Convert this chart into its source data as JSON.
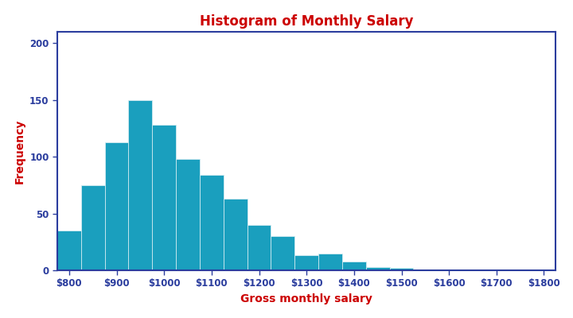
{
  "title": "Histogram of Monthly Salary",
  "xlabel": "Gross monthly salary",
  "ylabel": "Frequency",
  "title_color": "#cc0000",
  "label_color": "#cc0000",
  "bar_color": "#1a9fbe",
  "bar_edge_color": "#d0eaf0",
  "axis_color": "#2b3d9e",
  "tick_color": "#2b3d9e",
  "bin_width": 50,
  "bin_starts": [
    775,
    825,
    875,
    925,
    975,
    1025,
    1075,
    1125,
    1175,
    1225,
    1275,
    1325,
    1375,
    1425,
    1475,
    1525,
    1575,
    1625,
    1675,
    1725,
    1775
  ],
  "frequencies": [
    35,
    75,
    113,
    150,
    128,
    98,
    84,
    63,
    40,
    30,
    13,
    15,
    8,
    3,
    2,
    1,
    0,
    1,
    0,
    0,
    0
  ],
  "xlim": [
    775,
    1825
  ],
  "ylim": [
    0,
    210
  ],
  "yticks": [
    0,
    50,
    100,
    150,
    200
  ],
  "xticks": [
    800,
    900,
    1000,
    1100,
    1200,
    1300,
    1400,
    1500,
    1600,
    1700,
    1800
  ],
  "background_color": "#ffffff",
  "title_fontsize": 12,
  "label_fontsize": 10,
  "tick_fontsize": 8.5
}
